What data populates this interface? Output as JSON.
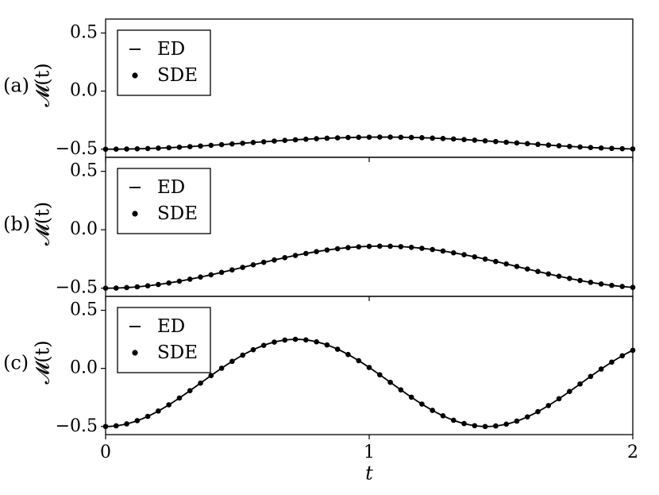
{
  "chart_data": [
    {
      "type": "line",
      "panel_label": "(a)",
      "ylabel": "𝓜(t)",
      "xlim": [
        0,
        2
      ],
      "ylim": [
        -0.57,
        0.62
      ],
      "yticks": [
        "0.5",
        "0.0",
        "−0.5"
      ],
      "legend": {
        "position": "upper-left",
        "entries": [
          "ED",
          "SDE"
        ]
      },
      "curve": {
        "amplitude": 0.052,
        "omega": 3.0
      },
      "series": [
        {
          "name": "ED",
          "style": "solid line"
        },
        {
          "name": "SDE",
          "style": "markers"
        }
      ]
    },
    {
      "type": "line",
      "panel_label": "(b)",
      "ylabel": "𝓜(t)",
      "xlim": [
        0,
        2
      ],
      "ylim": [
        -0.57,
        0.62
      ],
      "yticks": [
        "0.5",
        "0.0",
        "−0.5"
      ],
      "legend": {
        "position": "upper-left",
        "entries": [
          "ED",
          "SDE"
        ]
      },
      "curve": {
        "amplitude": 0.18,
        "omega": 3.0
      },
      "series": [
        {
          "name": "ED",
          "style": "solid line"
        },
        {
          "name": "SDE",
          "style": "markers"
        }
      ]
    },
    {
      "type": "line",
      "panel_label": "(c)",
      "ylabel": "𝓜(t)",
      "xlabel": "t",
      "xlim": [
        0,
        2
      ],
      "ylim": [
        -0.57,
        0.62
      ],
      "xticks": [
        "0",
        "1",
        "2"
      ],
      "yticks": [
        "0.5",
        "0.0",
        "−0.5"
      ],
      "legend": {
        "position": "upper-left",
        "entries": [
          "ED",
          "SDE"
        ]
      },
      "curve": {
        "amplitude": 0.375,
        "omega": 4.35
      },
      "series": [
        {
          "name": "ED",
          "style": "solid line"
        },
        {
          "name": "SDE",
          "style": "markers"
        }
      ]
    }
  ]
}
